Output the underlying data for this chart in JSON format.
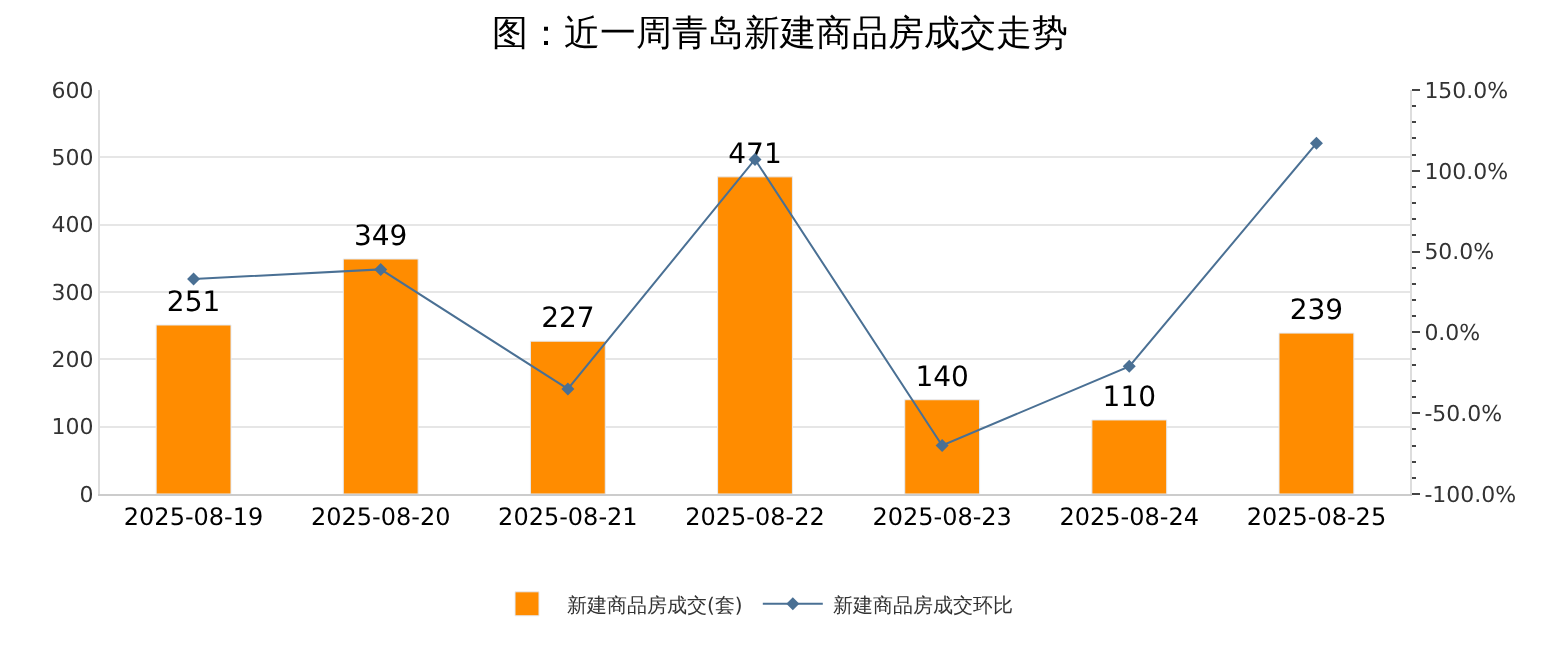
{
  "chart_data": {
    "type": "bar",
    "title": "图：近一周青岛新建商品房成交走势",
    "categories": [
      "2025-08-19",
      "2025-08-20",
      "2025-08-21",
      "2025-08-22",
      "2025-08-23",
      "2025-08-24",
      "2025-08-25"
    ],
    "series": [
      {
        "name": "新建商品房成交(套)",
        "color": "#ff8c00",
        "values": [
          251,
          349,
          227,
          471,
          140,
          110,
          239
        ],
        "value_labels": [
          "251",
          "349",
          "227",
          "471",
          "140",
          "110",
          "239"
        ]
      },
      {
        "name": "新建商品房成交环比",
        "type": "line",
        "axis": "y2",
        "color": "#4a7094",
        "values": [
          33,
          39,
          -35,
          107,
          -70,
          -21,
          117
        ],
        "marker": "diamond"
      }
    ],
    "ylim": [
      0,
      600
    ],
    "yticks": [
      0,
      100,
      200,
      300,
      400,
      500,
      600
    ],
    "y2lim": [
      -100,
      150
    ],
    "y2ticks": [
      {
        "value": -100,
        "label": "-100.0%"
      },
      {
        "value": -50,
        "label": "-50.0%"
      },
      {
        "value": 0,
        "label": "0.0%"
      },
      {
        "value": 50,
        "label": "50.0%"
      },
      {
        "value": 100,
        "label": "100.0%"
      },
      {
        "value": 150,
        "label": "150.0%"
      }
    ],
    "grid": "y",
    "legend": "bottom"
  }
}
